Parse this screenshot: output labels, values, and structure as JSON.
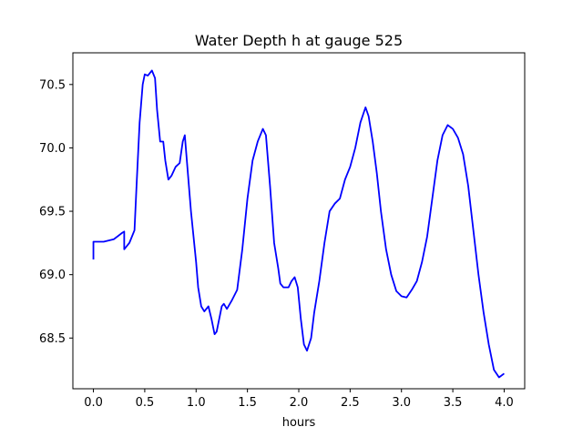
{
  "chart_data": {
    "type": "line",
    "title": "Water Depth h at gauge 525",
    "xlabel": "hours",
    "ylabel": "",
    "xlim": [
      -0.2,
      4.2
    ],
    "ylim": [
      68.1,
      70.75
    ],
    "x_ticks": [
      0.0,
      0.5,
      1.0,
      1.5,
      2.0,
      2.5,
      3.0,
      3.5,
      4.0
    ],
    "x_tick_labels": [
      "0.0",
      "0.5",
      "1.0",
      "1.5",
      "2.0",
      "2.5",
      "3.0",
      "3.5",
      "4.0"
    ],
    "y_ticks": [
      68.5,
      69.0,
      69.5,
      70.0,
      70.5
    ],
    "y_tick_labels": [
      "68.5",
      "69.0",
      "69.5",
      "70.0",
      "70.5"
    ],
    "grid": false,
    "series": [
      {
        "color": "#0000ff",
        "points": [
          [
            0.0,
            69.12
          ],
          [
            0.0,
            69.26
          ],
          [
            0.1,
            69.26
          ],
          [
            0.2,
            69.28
          ],
          [
            0.28,
            69.33
          ],
          [
            0.3,
            69.34
          ],
          [
            0.3,
            69.2
          ],
          [
            0.35,
            69.25
          ],
          [
            0.4,
            69.35
          ],
          [
            0.42,
            69.7
          ],
          [
            0.45,
            70.2
          ],
          [
            0.48,
            70.5
          ],
          [
            0.5,
            70.58
          ],
          [
            0.53,
            70.57
          ],
          [
            0.57,
            70.61
          ],
          [
            0.6,
            70.55
          ],
          [
            0.62,
            70.3
          ],
          [
            0.65,
            70.05
          ],
          [
            0.68,
            70.05
          ],
          [
            0.7,
            69.9
          ],
          [
            0.73,
            69.75
          ],
          [
            0.76,
            69.78
          ],
          [
            0.8,
            69.85
          ],
          [
            0.84,
            69.88
          ],
          [
            0.87,
            70.05
          ],
          [
            0.89,
            70.1
          ],
          [
            0.92,
            69.8
          ],
          [
            0.95,
            69.5
          ],
          [
            1.0,
            69.1
          ],
          [
            1.02,
            68.9
          ],
          [
            1.05,
            68.75
          ],
          [
            1.08,
            68.71
          ],
          [
            1.12,
            68.75
          ],
          [
            1.15,
            68.65
          ],
          [
            1.18,
            68.53
          ],
          [
            1.2,
            68.55
          ],
          [
            1.25,
            68.75
          ],
          [
            1.27,
            68.77
          ],
          [
            1.3,
            68.73
          ],
          [
            1.35,
            68.8
          ],
          [
            1.4,
            68.88
          ],
          [
            1.45,
            69.2
          ],
          [
            1.5,
            69.6
          ],
          [
            1.55,
            69.9
          ],
          [
            1.6,
            70.05
          ],
          [
            1.65,
            70.15
          ],
          [
            1.68,
            70.1
          ],
          [
            1.72,
            69.7
          ],
          [
            1.76,
            69.25
          ],
          [
            1.8,
            69.05
          ],
          [
            1.82,
            68.93
          ],
          [
            1.85,
            68.9
          ],
          [
            1.9,
            68.9
          ],
          [
            1.93,
            68.95
          ],
          [
            1.96,
            68.98
          ],
          [
            1.99,
            68.9
          ],
          [
            2.02,
            68.65
          ],
          [
            2.05,
            68.45
          ],
          [
            2.08,
            68.4
          ],
          [
            2.12,
            68.5
          ],
          [
            2.15,
            68.7
          ],
          [
            2.2,
            68.95
          ],
          [
            2.25,
            69.25
          ],
          [
            2.3,
            69.5
          ],
          [
            2.35,
            69.56
          ],
          [
            2.4,
            69.6
          ],
          [
            2.45,
            69.75
          ],
          [
            2.5,
            69.85
          ],
          [
            2.55,
            70.0
          ],
          [
            2.6,
            70.2
          ],
          [
            2.65,
            70.32
          ],
          [
            2.68,
            70.25
          ],
          [
            2.72,
            70.05
          ],
          [
            2.76,
            69.8
          ],
          [
            2.8,
            69.5
          ],
          [
            2.85,
            69.2
          ],
          [
            2.9,
            69.0
          ],
          [
            2.95,
            68.87
          ],
          [
            3.0,
            68.83
          ],
          [
            3.05,
            68.82
          ],
          [
            3.1,
            68.88
          ],
          [
            3.15,
            68.95
          ],
          [
            3.2,
            69.1
          ],
          [
            3.25,
            69.3
          ],
          [
            3.3,
            69.6
          ],
          [
            3.35,
            69.9
          ],
          [
            3.4,
            70.1
          ],
          [
            3.45,
            70.18
          ],
          [
            3.5,
            70.15
          ],
          [
            3.55,
            70.08
          ],
          [
            3.6,
            69.95
          ],
          [
            3.65,
            69.7
          ],
          [
            3.7,
            69.35
          ],
          [
            3.75,
            69.0
          ],
          [
            3.8,
            68.7
          ],
          [
            3.85,
            68.45
          ],
          [
            3.9,
            68.25
          ],
          [
            3.95,
            68.19
          ],
          [
            4.0,
            68.22
          ]
        ]
      }
    ]
  }
}
